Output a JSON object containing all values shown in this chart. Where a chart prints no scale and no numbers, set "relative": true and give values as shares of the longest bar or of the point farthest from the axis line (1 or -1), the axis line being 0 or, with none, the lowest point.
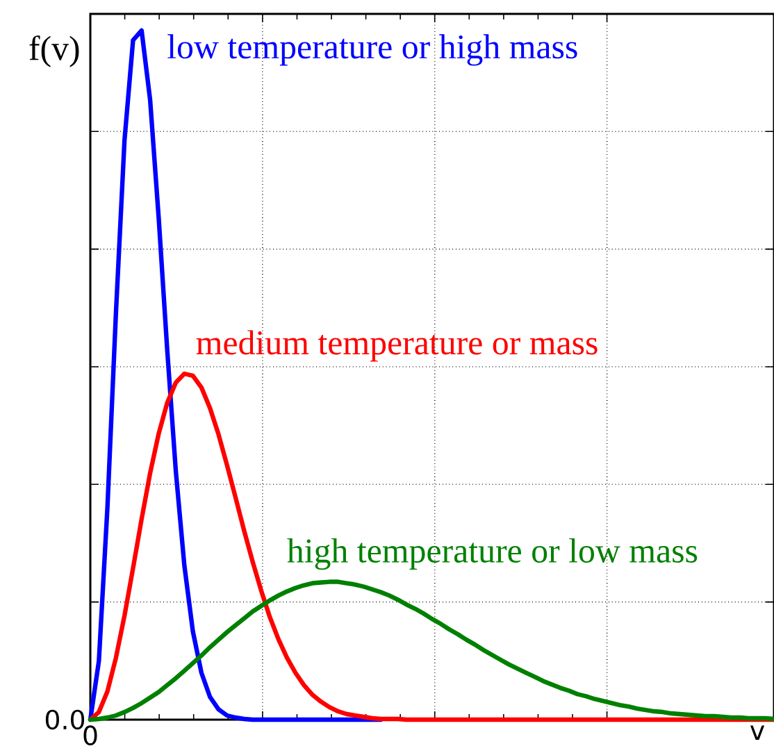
{
  "chart_data": {
    "type": "line",
    "xlabel": "v",
    "ylabel": "f(v)",
    "relative": true,
    "grid": true,
    "annotations": [
      "0.0",
      "0"
    ],
    "categories": [
      null,
      null,
      null,
      null,
      null,
      null,
      null,
      null,
      null,
      null,
      null,
      null,
      null,
      null,
      null,
      null,
      null,
      null,
      null,
      null,
      null,
      null,
      null,
      null,
      null,
      null,
      null,
      null,
      null,
      null,
      null,
      null,
      null,
      null,
      null,
      null,
      null,
      null,
      null,
      null,
      null,
      null,
      null,
      null,
      null,
      null,
      null,
      null,
      null,
      null,
      null,
      null,
      null,
      null,
      null,
      null,
      null,
      null,
      null,
      null,
      null,
      null,
      null,
      null,
      null,
      null,
      null,
      null,
      null,
      null,
      null,
      null,
      null,
      null,
      null,
      null,
      null,
      null,
      null,
      null,
      null
    ],
    "series": [
      {
        "name": "low temperature or high mass",
        "color": "#0000ff",
        "values": [
          0,
          0.085,
          0.308,
          0.591,
          0.841,
          0.986,
          1,
          0.899,
          0.728,
          0.536,
          0.361,
          0.224,
          0.128,
          0.068,
          0.033,
          0.015,
          0.006,
          0.003,
          0.001,
          0,
          0,
          0,
          0,
          0,
          0,
          0,
          0,
          0,
          0,
          0,
          0,
          0,
          0,
          0,
          0,
          null,
          null,
          null,
          null,
          null,
          null,
          null,
          null,
          null,
          null,
          null,
          null,
          null,
          null,
          null,
          null,
          null,
          null,
          null,
          null,
          null,
          null,
          null,
          null,
          null,
          null,
          null,
          null,
          null,
          null,
          null,
          null,
          null,
          null,
          null,
          null,
          null,
          null,
          null,
          null,
          null,
          null,
          null,
          null,
          null,
          null
        ]
      },
      {
        "name": "medium temperature or mass",
        "color": "#ff0000",
        "values": [
          0,
          0.011,
          0.041,
          0.09,
          0.151,
          0.22,
          0.291,
          0.358,
          0.415,
          0.46,
          0.489,
          0.502,
          0.499,
          0.482,
          0.452,
          0.414,
          0.369,
          0.322,
          0.274,
          0.229,
          0.187,
          0.149,
          0.117,
          0.09,
          0.068,
          0.05,
          0.036,
          0.026,
          0.018,
          0.012,
          0.008,
          0.006,
          0.004,
          0.002,
          0.001,
          0.001,
          0.001,
          0,
          0,
          0,
          0,
          0,
          0,
          0,
          0,
          0,
          0,
          0,
          0,
          0,
          0,
          0,
          0,
          0,
          0,
          0,
          0,
          0,
          0,
          0,
          0,
          0,
          0,
          0,
          0,
          0,
          0,
          0,
          0,
          0,
          0,
          0,
          0,
          0,
          0,
          0,
          0,
          0,
          0,
          0,
          0
        ]
      },
      {
        "name": "high temperature or low mass",
        "color": "#008000",
        "values": [
          0,
          0.001,
          0.003,
          0.006,
          0.011,
          0.017,
          0.024,
          0.032,
          0.04,
          0.05,
          0.06,
          0.071,
          0.082,
          0.093,
          0.105,
          0.116,
          0.127,
          0.137,
          0.147,
          0.157,
          0.165,
          0.173,
          0.18,
          0.186,
          0.191,
          0.195,
          0.198,
          0.199,
          0.2,
          0.2,
          0.198,
          0.196,
          0.193,
          0.189,
          0.185,
          0.18,
          0.174,
          0.167,
          0.161,
          0.154,
          0.146,
          0.139,
          0.131,
          0.124,
          0.116,
          0.109,
          0.101,
          0.094,
          0.087,
          0.08,
          0.074,
          0.068,
          0.062,
          0.056,
          0.051,
          0.046,
          0.042,
          0.037,
          0.034,
          0.03,
          0.027,
          0.024,
          0.021,
          0.019,
          0.016,
          0.014,
          0.012,
          0.011,
          0.009,
          0.008,
          0.007,
          0.006,
          0.005,
          0.005,
          0.004,
          0.003,
          0.003,
          0.002,
          0.002,
          0.002,
          0.001
        ]
      }
    ]
  }
}
